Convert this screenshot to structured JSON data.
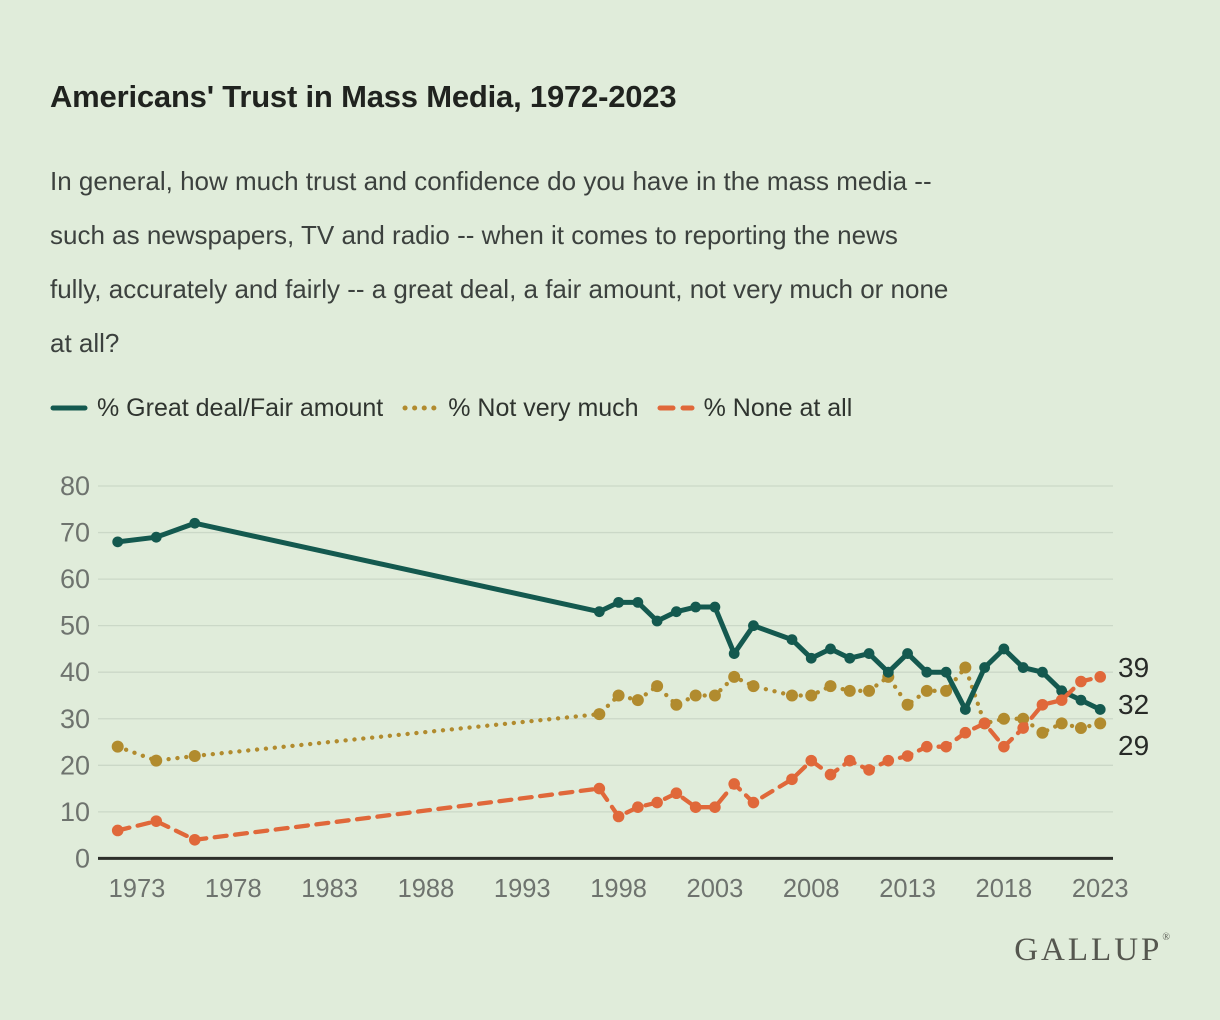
{
  "page": {
    "title": "Americans' Trust in Mass Media, 1972-2023",
    "subtitle_lines": [
      "In general, how much trust and confidence do you have in the mass media --",
      "such as newspapers, TV and radio -- when it comes to reporting the news",
      "fully, accurately and fairly -- a great deal, a fair amount, not very much or none",
      "at all?"
    ],
    "brand": "GALLUP",
    "brand_mark": "®"
  },
  "colors": {
    "background": "#e0ecda",
    "grid": "#cbd8c7",
    "axis": "#2d2f2a",
    "tick_label": "#6e736e",
    "title_text": "#20231f",
    "body_text": "#3c413e",
    "end_label_text": "#272a27",
    "logo_text": "#55574f"
  },
  "chart_data": {
    "type": "line",
    "title": "Americans' Trust in Mass Media, 1972-2023",
    "xlabel": "",
    "ylabel": "",
    "x": [
      1972,
      1974,
      1976,
      1997,
      1998,
      1999,
      2000,
      2001,
      2002,
      2003,
      2004,
      2005,
      2007,
      2008,
      2009,
      2010,
      2011,
      2012,
      2013,
      2014,
      2015,
      2016,
      2017,
      2018,
      2019,
      2020,
      2021,
      2022,
      2023
    ],
    "series": [
      {
        "id": "great-deal-fair-amount",
        "name": "% Great deal/Fair amount",
        "color": "#14594f",
        "style": "solid",
        "end_label": "32",
        "values": [
          68,
          69,
          72,
          53,
          55,
          55,
          51,
          53,
          54,
          54,
          44,
          50,
          47,
          43,
          45,
          43,
          44,
          40,
          44,
          40,
          40,
          32,
          41,
          45,
          41,
          40,
          36,
          34,
          32
        ]
      },
      {
        "id": "not-very-much",
        "name": "% Not very much",
        "color": "#b18b2e",
        "style": "dotted",
        "end_label": "29",
        "values": [
          24,
          21,
          22,
          31,
          35,
          34,
          37,
          33,
          35,
          35,
          39,
          37,
          35,
          35,
          37,
          36,
          36,
          39,
          33,
          36,
          36,
          41,
          29,
          30,
          30,
          27,
          29,
          28,
          29
        ]
      },
      {
        "id": "none-at-all",
        "name": "% None at all",
        "color": "#e0683a",
        "style": "dashed",
        "end_label": "39",
        "values": [
          6,
          8,
          4,
          15,
          9,
          11,
          12,
          14,
          11,
          11,
          16,
          12,
          17,
          21,
          18,
          21,
          19,
          21,
          22,
          24,
          24,
          27,
          29,
          24,
          28,
          33,
          34,
          38,
          39
        ]
      }
    ],
    "x_ticks": [
      1973,
      1978,
      1983,
      1988,
      1993,
      1998,
      2003,
      2008,
      2013,
      2018,
      2023
    ],
    "y_ticks": [
      0,
      10,
      20,
      30,
      40,
      50,
      60,
      70,
      80
    ],
    "ylim": [
      0,
      80
    ],
    "xlim": [
      1971,
      2024
    ],
    "grid": "horizontal",
    "legend_position": "top-left"
  }
}
